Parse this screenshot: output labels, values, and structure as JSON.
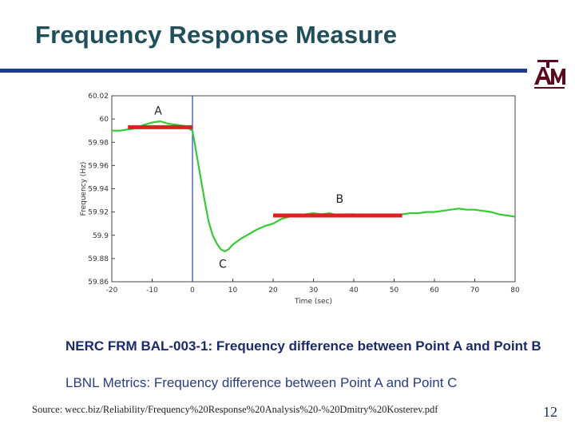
{
  "slide": {
    "title": "Frequency Response Measure",
    "caption_1": "NERC FRM BAL-003-1:  Frequency difference between Point A and Point B",
    "caption_2": "LBNL Metrics: Frequency difference between Point A and Point C",
    "source": "Source: wecc.biz/Reliability/Frequency%20Response%20Analysis%20-%20Dmitry%20Kosterev.pdf",
    "page_number": "12",
    "logo_text": "ATM",
    "colors": {
      "title": "#1f4f5a",
      "rule": "#1f3a8a",
      "caption": "#1a2a6c",
      "logo": "#5c0a1e"
    }
  },
  "chart_data": {
    "type": "line",
    "title": "",
    "xlabel": "Time (sec)",
    "ylabel": "Frequency (Hz)",
    "xlim": [
      -20,
      80
    ],
    "ylim": [
      59.86,
      60.02
    ],
    "xticks": [
      -20,
      -10,
      0,
      10,
      20,
      30,
      40,
      50,
      60,
      70,
      80
    ],
    "xtick_labels": [
      "-20",
      "-10",
      "0",
      "10",
      "20",
      "30",
      "40",
      "50",
      "60",
      "70",
      "80"
    ],
    "yticks": [
      59.86,
      59.88,
      59.9,
      59.92,
      59.94,
      59.96,
      59.98,
      60.0,
      60.02
    ],
    "ytick_labels": [
      "59.86",
      "59.88",
      "59.9",
      "59.92",
      "59.94",
      "59.96",
      "59.98",
      "60",
      "60.02"
    ],
    "grid": false,
    "series": [
      {
        "color": "#33cc33",
        "x": [
          -20,
          -18,
          -16,
          -14,
          -12,
          -10,
          -8,
          -6,
          -4,
          -2,
          0,
          1,
          2,
          3,
          4,
          5,
          6,
          7,
          8,
          9,
          10,
          12,
          14,
          16,
          18,
          20,
          22,
          24,
          26,
          28,
          30,
          32,
          34,
          36,
          38,
          40,
          42,
          44,
          46,
          48,
          50,
          52,
          54,
          56,
          58,
          60,
          62,
          64,
          66,
          68,
          70,
          72,
          74,
          76,
          78,
          80
        ],
        "y": [
          59.99,
          59.99,
          59.991,
          59.992,
          59.995,
          59.997,
          59.998,
          59.996,
          59.995,
          59.994,
          59.99,
          59.97,
          59.95,
          59.93,
          59.912,
          59.9,
          59.893,
          59.888,
          59.886,
          59.888,
          59.892,
          59.897,
          59.901,
          59.905,
          59.908,
          59.91,
          59.914,
          59.916,
          59.917,
          59.918,
          59.919,
          59.918,
          59.919,
          59.917,
          59.918,
          59.918,
          59.916,
          59.918,
          59.917,
          59.917,
          59.916,
          59.918,
          59.919,
          59.919,
          59.92,
          59.92,
          59.921,
          59.922,
          59.923,
          59.922,
          59.922,
          59.921,
          59.92,
          59.918,
          59.917,
          59.916
        ]
      }
    ],
    "event_marker": {
      "x": 0,
      "color": "#2a3fcf"
    },
    "reference_lines": [
      {
        "label": "A",
        "x": [
          -16,
          0
        ],
        "y": 59.993,
        "color": "#e02020"
      },
      {
        "label": "B",
        "x": [
          20,
          52
        ],
        "y": 59.917,
        "color": "#e02020"
      }
    ],
    "point_labels": [
      {
        "label": "A",
        "x": -8.5,
        "y": 60.004
      },
      {
        "label": "B",
        "x": 36.5,
        "y": 59.928
      },
      {
        "label": "C",
        "x": 7.5,
        "y": 59.872
      }
    ]
  }
}
